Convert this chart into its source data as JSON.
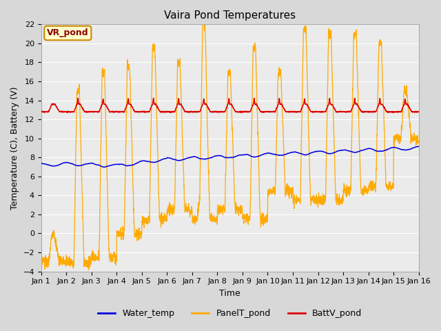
{
  "title": "Vaira Pond Temperatures",
  "xlabel": "Time",
  "ylabel": "Temperature (C), Battery (V)",
  "ylim": [
    -4,
    22
  ],
  "yticks": [
    -4,
    -2,
    0,
    2,
    4,
    6,
    8,
    10,
    12,
    14,
    16,
    18,
    20,
    22
  ],
  "xtick_labels": [
    "Jan 1",
    "Jan 2",
    "Jan 3",
    "Jan 4",
    "Jan 5",
    "Jan 6",
    "Jan 7",
    "Jan 8",
    "Jan 9",
    "Jan 10",
    "Jan 11",
    "Jan 12",
    "Jan 13",
    "Jan 14",
    "Jan 15",
    "Jan 16"
  ],
  "water_color": "#0000dd",
  "panel_color": "#ffaa00",
  "batt_color": "#dd0000",
  "background_color": "#d8d8d8",
  "plot_bg_color": "#ebebeb",
  "grid_color": "#ffffff",
  "legend_items": [
    "Water_temp",
    "PanelT_pond",
    "BattV_pond"
  ],
  "annotation_text": "VR_pond",
  "annotation_box_color": "#ffffcc",
  "annotation_border_color": "#cc8800",
  "annotation_text_color": "#880000"
}
